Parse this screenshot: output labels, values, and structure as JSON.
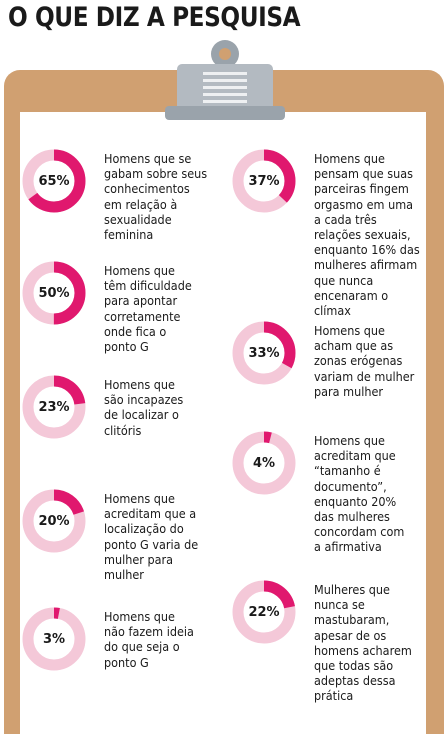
{
  "title": "O QUE DIZ A PESQUISA",
  "colors": {
    "board": "#d0a071",
    "accent": "#e0186e",
    "track": "#f4c8d8"
  },
  "chart_data": {
    "type": "donut",
    "items": [
      {
        "value": 65,
        "label": "65%",
        "text": [
          "Homens que se",
          "gabam sobre seus",
          "conhecimentos",
          "em relação à",
          "sexualidade",
          "feminina"
        ]
      },
      {
        "value": 50,
        "label": "50%",
        "text": [
          "Homens que",
          "têm dificuldade",
          "para apontar",
          "corretamente",
          "onde fica o",
          "ponto G"
        ]
      },
      {
        "value": 23,
        "label": "23%",
        "text": [
          "Homens que",
          "são incapazes",
          "de localizar o",
          "clitóris"
        ]
      },
      {
        "value": 20,
        "label": "20%",
        "text": [
          "Homens que",
          "acreditam que a",
          "localização do",
          "ponto G varia de",
          "mulher para",
          "mulher"
        ]
      },
      {
        "value": 3,
        "label": "3%",
        "text": [
          "Homens que",
          "não fazem ideia",
          "do que seja o",
          "ponto G"
        ]
      },
      {
        "value": 37,
        "label": "37%",
        "text": [
          "Homens que",
          "pensam que suas",
          "parceiras fingem",
          "orgasmo em uma",
          "a cada três",
          "relações sexuais,",
          "enquanto 16% das",
          "mulheres afirmam",
          "que nunca",
          "encenaram o",
          "clímax"
        ]
      },
      {
        "value": 33,
        "label": "33%",
        "text": [
          "Homens que",
          "acham que as",
          "zonas erógenas",
          "variam de mulher",
          "para mulher"
        ]
      },
      {
        "value": 4,
        "label": "4%",
        "text": [
          "Homens que",
          "acreditam que",
          "“tamanho é",
          "documento”,",
          "enquanto 20%",
          "das mulheres",
          "concordam com",
          "a afirmativa"
        ]
      },
      {
        "value": 22,
        "label": "22%",
        "text": [
          "Mulheres que",
          "nunca se",
          "mastubaram,",
          "apesar de os",
          "homens acharem",
          "que todas são",
          "adeptas dessa",
          "prática"
        ]
      }
    ]
  }
}
